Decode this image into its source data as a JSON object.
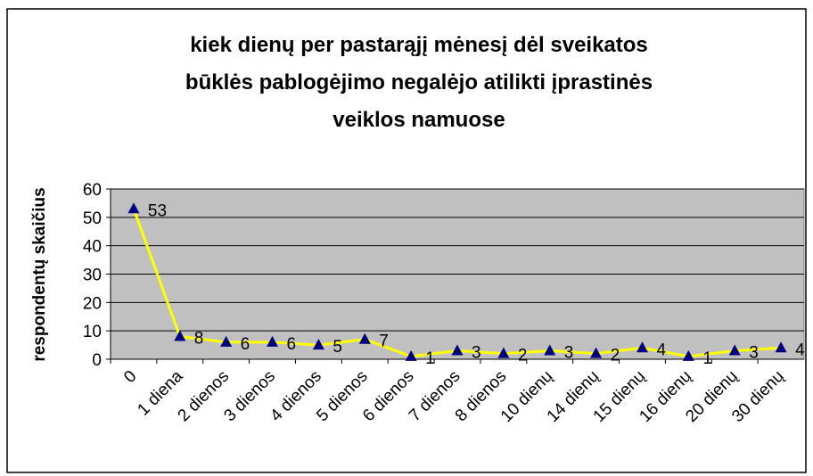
{
  "chart_data": {
    "type": "line",
    "title": [
      "kiek dienų per pastarąjį mėnesį dėl sveikatos",
      "būklės pablogėjimo negalėjo atilikti įprastinės",
      "veiklos namuose"
    ],
    "y_label": "respondentų skaičius",
    "categories": [
      "0",
      "1 diena",
      "2 dienos",
      "3 dienos",
      "4 dienos",
      "5 dienos",
      "6 dienos",
      "7 dienos",
      "8 dienos",
      "10 dienų",
      "14 dienų",
      "15 dienų",
      "16 dienų",
      "20 dienų",
      "30 dienų"
    ],
    "series": [
      {
        "color": "#ffff00",
        "marker_color": "#000080",
        "values": [
          53,
          8,
          6,
          6,
          5,
          7,
          1,
          3,
          2,
          3,
          2,
          4,
          1,
          3,
          4
        ]
      }
    ],
    "ylim": [
      0,
      60
    ],
    "yticks": [
      0,
      10,
      20,
      30,
      40,
      50,
      60
    ],
    "grid": true,
    "plot_background": "#c0c0c0"
  }
}
